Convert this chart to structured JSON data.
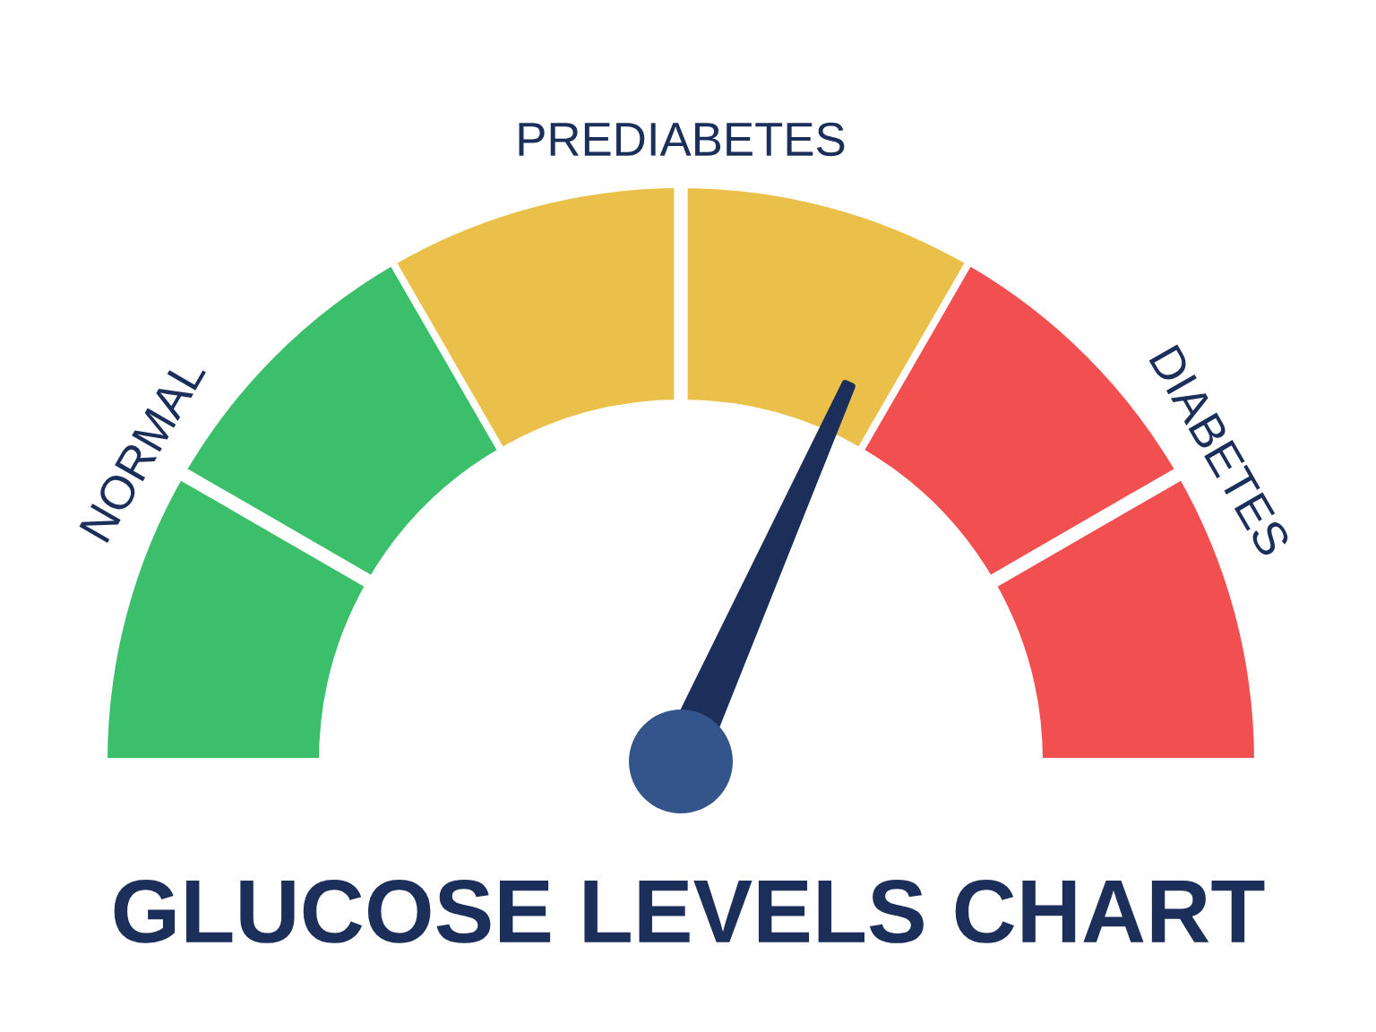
{
  "chart_data": {
    "type": "donut",
    "title": "GLUCOSE LEVELS CHART",
    "categories": [
      "NORMAL",
      "PREDIABETES",
      "DIABETES"
    ],
    "values": [
      33.33,
      33.34,
      33.33
    ],
    "colors": [
      "#3bbf6b",
      "#ebc04a",
      "#f25050"
    ],
    "needle": "PREDIABETES"
  }
}
